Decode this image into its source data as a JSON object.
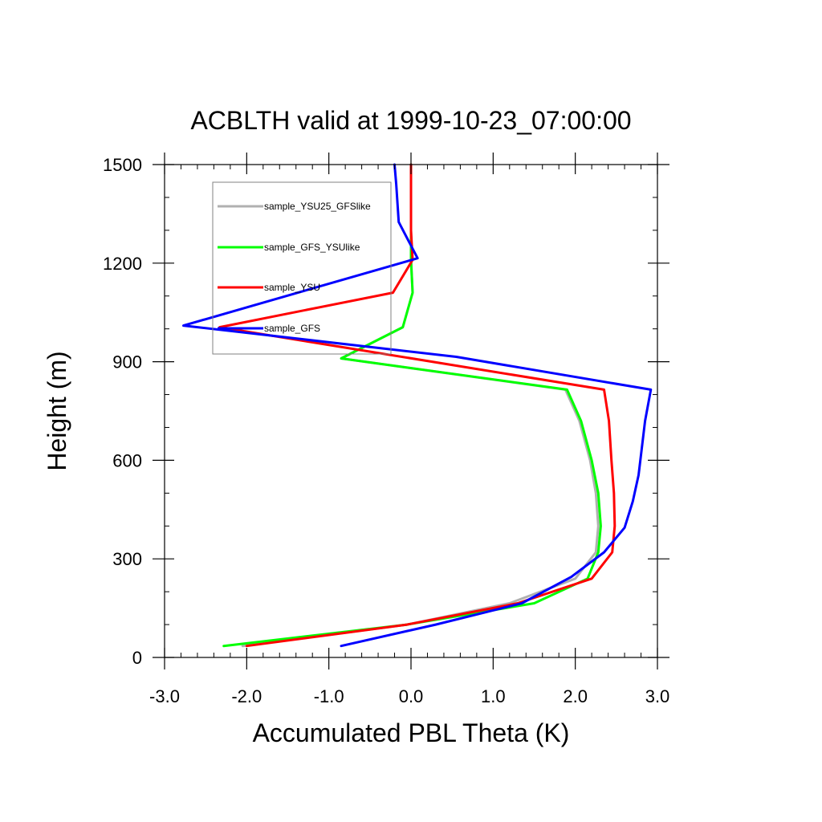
{
  "chart_data": {
    "type": "line",
    "title": "ACBLTH valid at 1999-10-23_07:00:00",
    "xlabel": "Accumulated PBL Theta (K)",
    "ylabel": "Height (m)",
    "xlim": [
      -3.0,
      3.0
    ],
    "ylim": [
      0,
      1500
    ],
    "xticks": [
      -3.0,
      -2.0,
      -1.0,
      0.0,
      1.0,
      2.0,
      3.0
    ],
    "xtick_labels": [
      "-3.0",
      "-2.0",
      "-1.0",
      "0.0",
      "1.0",
      "2.0",
      "3.0"
    ],
    "yticks": [
      0,
      300,
      600,
      900,
      1200,
      1500
    ],
    "ytick_labels": [
      "0",
      "300",
      "600",
      "900",
      "1200",
      "1500"
    ],
    "grid": false,
    "legend_position": "top-left",
    "series": [
      {
        "name": "sample_YSU25_GFSlike",
        "color": "#b0b0b0",
        "x": [
          -2.05,
          -0.05,
          1.2,
          2.0,
          2.25,
          2.28,
          2.25,
          2.18,
          2.05,
          1.88,
          -0.85,
          -0.1,
          0.02,
          0.0,
          0.0
        ],
        "y": [
          35,
          100,
          165,
          240,
          320,
          400,
          500,
          600,
          720,
          815,
          910,
          1005,
          1110,
          1210,
          1500
        ]
      },
      {
        "name": "sample_GFS_YSUlike",
        "color": "#00ff00",
        "x": [
          -2.28,
          -0.05,
          1.5,
          2.15,
          2.28,
          2.31,
          2.28,
          2.2,
          2.07,
          1.9,
          -0.85,
          -0.1,
          0.02,
          0.0,
          0.0
        ],
        "y": [
          35,
          100,
          165,
          240,
          320,
          400,
          500,
          600,
          720,
          815,
          910,
          1005,
          1110,
          1210,
          1500
        ]
      },
      {
        "name": "sample_YSU",
        "color": "#ff0000",
        "x": [
          -2.0,
          -0.05,
          1.3,
          2.2,
          2.45,
          2.48,
          2.47,
          2.44,
          2.41,
          2.35,
          -2.33,
          -0.22,
          0.02,
          0.0,
          0.0
        ],
        "y": [
          35,
          100,
          165,
          240,
          320,
          400,
          500,
          600,
          720,
          815,
          1005,
          1110,
          1210,
          1300,
          1500
        ]
      },
      {
        "name": "sample_GFS",
        "color": "#0000ff",
        "x": [
          -0.85,
          0.3,
          1.35,
          1.95,
          2.35,
          2.6,
          2.7,
          2.77,
          2.85,
          2.92,
          0.55,
          -2.77,
          0.08,
          -0.15,
          -0.18,
          -0.2
        ],
        "y": [
          35,
          100,
          165,
          245,
          320,
          395,
          475,
          555,
          720,
          815,
          915,
          1010,
          1215,
          1325,
          1440,
          1500
        ]
      }
    ]
  }
}
